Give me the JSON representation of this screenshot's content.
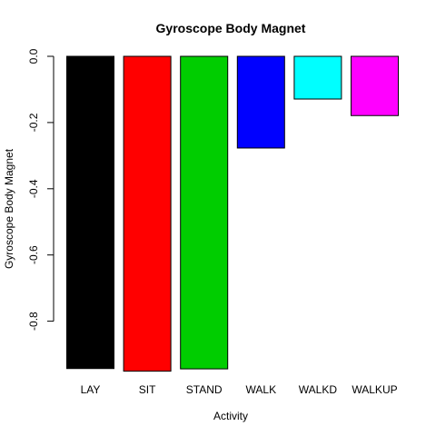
{
  "chart_data": {
    "type": "bar",
    "title": "Gyroscope Body Magnet",
    "xlabel": "Activity",
    "ylabel": "Gyroscope Body Magnet",
    "categories": [
      "LAY",
      "SIT",
      "STAND",
      "WALK",
      "WALKD",
      "WALKUP"
    ],
    "values": [
      -0.943,
      -0.951,
      -0.944,
      -0.277,
      -0.129,
      -0.179
    ],
    "colors": [
      "#000000",
      "#ff0000",
      "#00cd00",
      "#0000ff",
      "#00ffff",
      "#ff00ff"
    ],
    "yticks": [
      0.0,
      -0.2,
      -0.4,
      -0.6,
      -0.8
    ],
    "ytick_labels": [
      "0.0",
      "-0.2",
      "-0.4",
      "-0.6",
      "-0.8"
    ],
    "ylim": [
      -0.951,
      0.0
    ],
    "grid": false,
    "legend": "none"
  }
}
